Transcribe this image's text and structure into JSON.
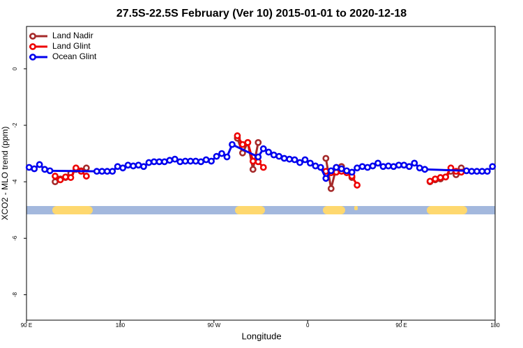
{
  "chart_data": {
    "type": "line",
    "title": "27.5S-22.5S February (Ver 10)   2015-01-01 to 2020-12-18",
    "xlabel": "Longitude",
    "ylabel": "XCO2 - MLO trend (ppm)",
    "xlim": [
      90,
      540
    ],
    "ylim": [
      -8.9,
      1.5
    ],
    "xticks": [
      {
        "value": 90,
        "label": "90 E"
      },
      180,
      {
        "value": 270,
        "label": "90 W"
      },
      {
        "value": 360,
        "label": "0"
      },
      {
        "value": 450,
        "label": "90 E"
      },
      {
        "value": 540,
        "label": "180"
      }
    ],
    "yticks": [
      0,
      -2,
      -4,
      -6,
      -8
    ],
    "legend": "top-left",
    "series": [
      {
        "name": "Land Nadir",
        "color": "#a52a2a",
        "x": [
          117.5,
          122.5,
          127.5,
          132.5,
          137.5,
          142.5,
          147.5,
          200,
          292.5,
          297.5,
          302.5,
          307.5,
          312.5,
          345,
          377.5,
          382.5,
          387.5,
          392.5,
          397.5,
          402.5,
          440,
          477.5,
          482.5,
          487.5,
          492.5,
          497.5,
          502.5,
          507.5
        ],
        "values": [
          -4.0,
          -3.9,
          -3.85,
          -3.7,
          -3.56,
          -3.61,
          -3.51,
          null,
          -2.46,
          -2.98,
          -2.61,
          -3.56,
          -2.61,
          null,
          -3.17,
          -4.24,
          -3.49,
          -3.46,
          -3.66,
          -3.85,
          null,
          -4.0,
          -3.93,
          -3.9,
          -3.83,
          -3.63,
          -3.75,
          -3.51
        ]
      },
      {
        "name": "Land Glint",
        "color": "#ee0000",
        "x": [
          117.5,
          122.5,
          127.5,
          132.5,
          137.5,
          142.5,
          147.5,
          200,
          292.5,
          297.5,
          302.5,
          307.5,
          312.5,
          317.5,
          345,
          377.5,
          382.5,
          387.5,
          392.5,
          397.5,
          402.5,
          407.5,
          440,
          477.5,
          482.5,
          487.5,
          492.5,
          497.5,
          502.5,
          507.5
        ],
        "values": [
          -3.8,
          -3.93,
          -3.83,
          -3.85,
          -3.51,
          -3.63,
          -3.8,
          null,
          -2.37,
          -2.68,
          -2.61,
          -3.27,
          -3.29,
          -3.49,
          null,
          -3.63,
          -3.68,
          -3.66,
          -3.63,
          -3.68,
          -3.8,
          -4.12,
          null,
          -3.98,
          -3.9,
          -3.85,
          -3.83,
          -3.51,
          -3.63,
          -3.66
        ]
      },
      {
        "name": "Ocean Glint",
        "color": "#0000ee",
        "x": [
          92.5,
          97.5,
          102.5,
          107.5,
          112.5,
          157.5,
          162.5,
          167.5,
          172.5,
          177.5,
          182.5,
          187.5,
          192.5,
          197.5,
          202.5,
          207.5,
          212.5,
          217.5,
          222.5,
          227.5,
          232.5,
          237.5,
          242.5,
          247.5,
          252.5,
          257.5,
          262.5,
          267.5,
          272.5,
          277.5,
          282.5,
          287.5,
          312.5,
          317.5,
          322.5,
          327.5,
          332.5,
          337.5,
          342.5,
          347.5,
          352.5,
          357.5,
          362.5,
          367.5,
          372.5,
          377.5,
          382.5,
          387.5,
          392.5,
          397.5,
          402.5,
          407.5,
          412.5,
          417.5,
          422.5,
          427.5,
          432.5,
          437.5,
          442.5,
          447.5,
          452.5,
          457.5,
          462.5,
          467.5,
          472.5,
          512.5,
          517.5,
          522.5,
          527.5,
          532.5,
          537.5
        ],
        "values": [
          -3.49,
          -3.54,
          -3.39,
          -3.56,
          -3.61,
          -3.63,
          -3.63,
          -3.63,
          -3.63,
          -3.46,
          -3.51,
          -3.41,
          -3.44,
          -3.41,
          -3.46,
          -3.32,
          -3.29,
          -3.29,
          -3.29,
          -3.24,
          -3.2,
          -3.29,
          -3.27,
          -3.27,
          -3.27,
          -3.29,
          -3.22,
          -3.27,
          -3.1,
          -3.0,
          -3.12,
          -2.68,
          -3.12,
          -2.83,
          -2.95,
          -3.05,
          -3.1,
          -3.17,
          -3.2,
          -3.22,
          -3.32,
          -3.22,
          -3.34,
          -3.44,
          -3.49,
          -3.88,
          -3.61,
          -3.49,
          -3.54,
          -3.61,
          -3.66,
          -3.51,
          -3.46,
          -3.49,
          -3.44,
          -3.34,
          -3.46,
          -3.44,
          -3.46,
          -3.41,
          -3.41,
          -3.46,
          -3.34,
          -3.51,
          -3.56,
          -3.61,
          -3.63,
          -3.63,
          -3.63,
          -3.63,
          -3.46
        ]
      }
    ]
  }
}
